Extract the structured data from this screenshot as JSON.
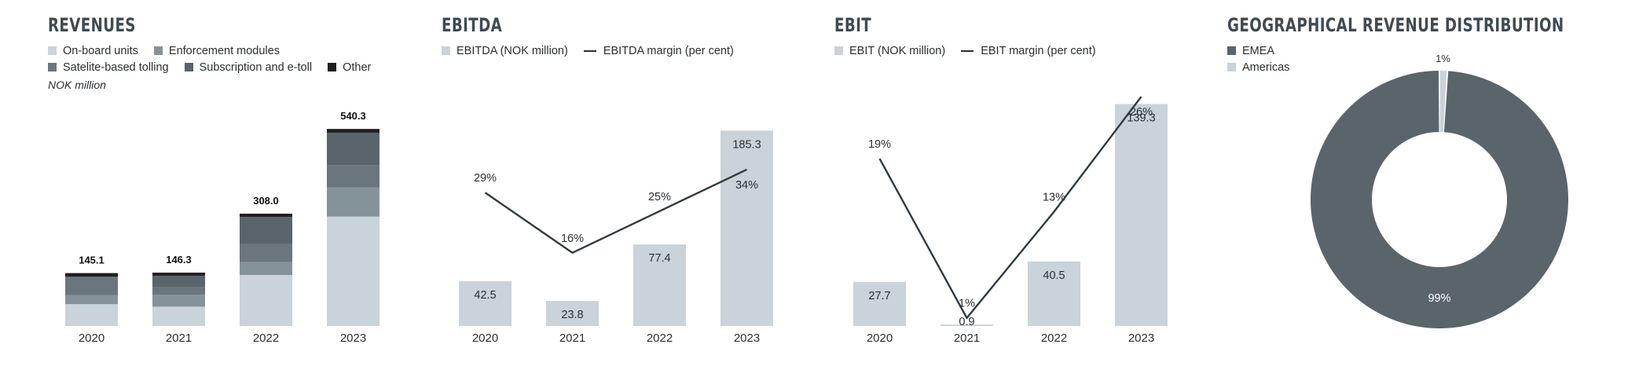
{
  "colors": {
    "light": "#c9d3d9",
    "mid": "#849399",
    "dark_mid": "#6b767c",
    "dark": "#5a646b",
    "black": "#1e1f21",
    "line": "#2f3a42",
    "label_light": "#ffffff"
  },
  "revenues": {
    "title": "REVENUES",
    "unit": "NOK million",
    "legend": [
      {
        "label": "On-board units",
        "color": "#c9d3d9"
      },
      {
        "label": "Enforcement modules",
        "color": "#849399"
      },
      {
        "label": "Satelite-based tolling",
        "color": "#6b767c"
      },
      {
        "label": "Subscription and e-toll",
        "color": "#5a646b"
      },
      {
        "label": "Other",
        "color": "#1e1f21"
      }
    ]
  },
  "ebitda": {
    "title": "EBITDA",
    "legend_bar": "EBITDA (NOK million)",
    "legend_line": "EBITDA margin (per cent)"
  },
  "ebit": {
    "title": "EBIT",
    "legend_bar": "EBIT (NOK million)",
    "legend_line": "EBIT margin (per cent)"
  },
  "geo": {
    "title": "GEOGRAPHICAL REVENUE DISTRIBUTION",
    "legend": [
      {
        "label": "EMEA",
        "color": "#5a646b"
      },
      {
        "label": "Americas",
        "color": "#c9d3d9"
      }
    ]
  },
  "chart_data": [
    {
      "type": "bar",
      "stacked": true,
      "categories": [
        "2020",
        "2021",
        "2022",
        "2023"
      ],
      "totals": [
        145.1,
        146.3,
        308.0,
        540.3
      ],
      "total_labels": [
        "145.1",
        "146.3",
        "308.0",
        "540.3"
      ],
      "series": [
        {
          "name": "On-board units",
          "values": [
            60,
            53,
            140,
            300
          ]
        },
        {
          "name": "Enforcement modules",
          "values": [
            25,
            33,
            35,
            80
          ]
        },
        {
          "name": "Satelite-based tolling",
          "values": [
            50,
            20,
            50,
            60
          ]
        },
        {
          "name": "Subscription and e-toll",
          "values": [
            0,
            32,
            74,
            90
          ]
        },
        {
          "name": "Other",
          "values": [
            10.1,
            8.3,
            9,
            10.3
          ]
        }
      ],
      "ylim": [
        0,
        560
      ]
    },
    {
      "type": "bar",
      "categories": [
        "2020",
        "2021",
        "2022",
        "2023"
      ],
      "series": [
        {
          "name": "EBITDA (NOK million)",
          "values": [
            42.5,
            23.8,
            77.4,
            185.3
          ],
          "labels": [
            "42.5",
            "23.8",
            "77.4",
            "185.3"
          ]
        },
        {
          "name": "EBITDA margin (per cent)",
          "type": "line",
          "values": [
            29,
            16,
            25,
            34
          ],
          "labels": [
            "29%",
            "16%",
            "25%",
            "34%"
          ]
        }
      ],
      "ylim": [
        0,
        190
      ],
      "line_ylim": [
        0,
        45
      ]
    },
    {
      "type": "bar",
      "categories": [
        "2020",
        "2021",
        "2022",
        "2023"
      ],
      "series": [
        {
          "name": "EBIT (NOK million)",
          "values": [
            27.7,
            0.9,
            40.5,
            139.3
          ],
          "labels": [
            "27.7",
            "0.9",
            "40.5",
            "139.3"
          ]
        },
        {
          "name": "EBIT margin (per cent)",
          "type": "line",
          "values": [
            19,
            1,
            13,
            26
          ],
          "labels": [
            "19%",
            "1%",
            "13%",
            "26%"
          ]
        }
      ],
      "ylim": [
        0,
        140
      ],
      "line_ylim": [
        0,
        30
      ]
    },
    {
      "type": "pie",
      "donut": true,
      "labels": [
        "EMEA",
        "Americas"
      ],
      "values": [
        99,
        1
      ],
      "value_labels": [
        "99%",
        "1%"
      ]
    }
  ]
}
